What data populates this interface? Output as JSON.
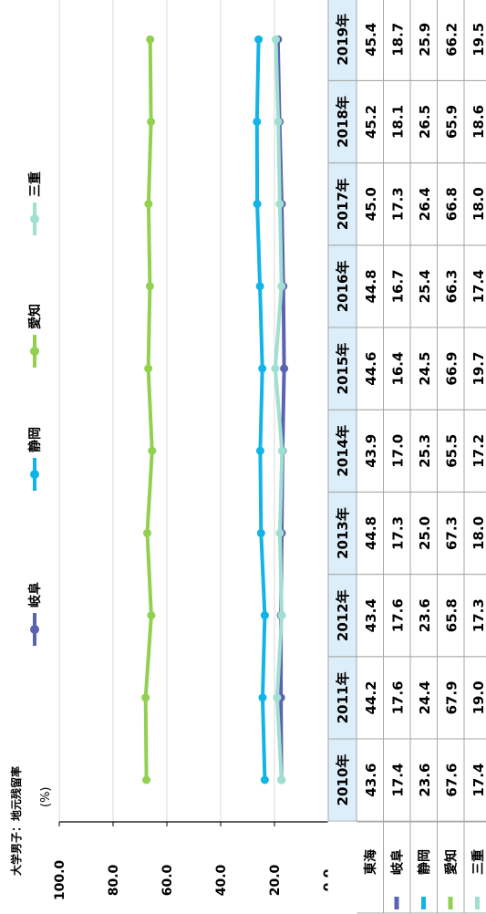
{
  "chart_data": {
    "type": "line",
    "title": "大学男子：地元残留率",
    "ylabel": "(%)",
    "ylim": [
      0,
      100
    ],
    "yticks": [
      "0.0",
      "20.0",
      "40.0",
      "60.0",
      "80.0",
      "100.0"
    ],
    "grid": true,
    "legend_position": "top",
    "categories": [
      "2010年",
      "2011年",
      "2012年",
      "2013年",
      "2014年",
      "2015年",
      "2016年",
      "2017年",
      "2018年",
      "2019年"
    ],
    "series": [
      {
        "name": "岐阜",
        "color": "#5b62b0",
        "values": [
          17.4,
          17.6,
          17.6,
          17.3,
          17.0,
          16.4,
          16.7,
          17.3,
          18.1,
          18.7
        ],
        "labels": [
          "17.4",
          "17.6",
          "17.6",
          "17.3",
          "17.0",
          "16.4",
          "16.7",
          "17.3",
          "18.1",
          "18.7"
        ]
      },
      {
        "name": "静岡",
        "color": "#12b4e8",
        "values": [
          23.6,
          24.4,
          23.6,
          25.0,
          25.3,
          24.5,
          25.4,
          26.4,
          26.5,
          25.9
        ],
        "labels": [
          "23.6",
          "24.4",
          "23.6",
          "25.0",
          "25.3",
          "24.5",
          "25.4",
          "26.4",
          "26.5",
          "25.9"
        ]
      },
      {
        "name": "愛知",
        "color": "#92d050",
        "values": [
          67.6,
          67.9,
          65.8,
          67.3,
          65.5,
          66.9,
          66.3,
          66.8,
          65.9,
          66.2
        ],
        "labels": [
          "67.6",
          "67.9",
          "65.8",
          "67.3",
          "65.5",
          "66.9",
          "66.3",
          "66.8",
          "65.9",
          "66.2"
        ]
      },
      {
        "name": "三重",
        "color": "#9fe0d0",
        "values": [
          17.4,
          19.0,
          17.3,
          18.0,
          17.2,
          19.7,
          17.4,
          18.0,
          18.6,
          19.5
        ],
        "labels": [
          "17.4",
          "19.0",
          "17.3",
          "18.0",
          "17.2",
          "19.7",
          "17.4",
          "18.0",
          "18.6",
          "19.5"
        ]
      }
    ],
    "table_extra_rows": [
      {
        "name": "東海",
        "values": [
          "43.6",
          "44.2",
          "43.4",
          "44.8",
          "43.9",
          "44.6",
          "44.8",
          "45.0",
          "45.2",
          "45.4"
        ]
      }
    ],
    "table_row_order": [
      "東海",
      "岐阜",
      "静岡",
      "愛知",
      "三重"
    ]
  }
}
